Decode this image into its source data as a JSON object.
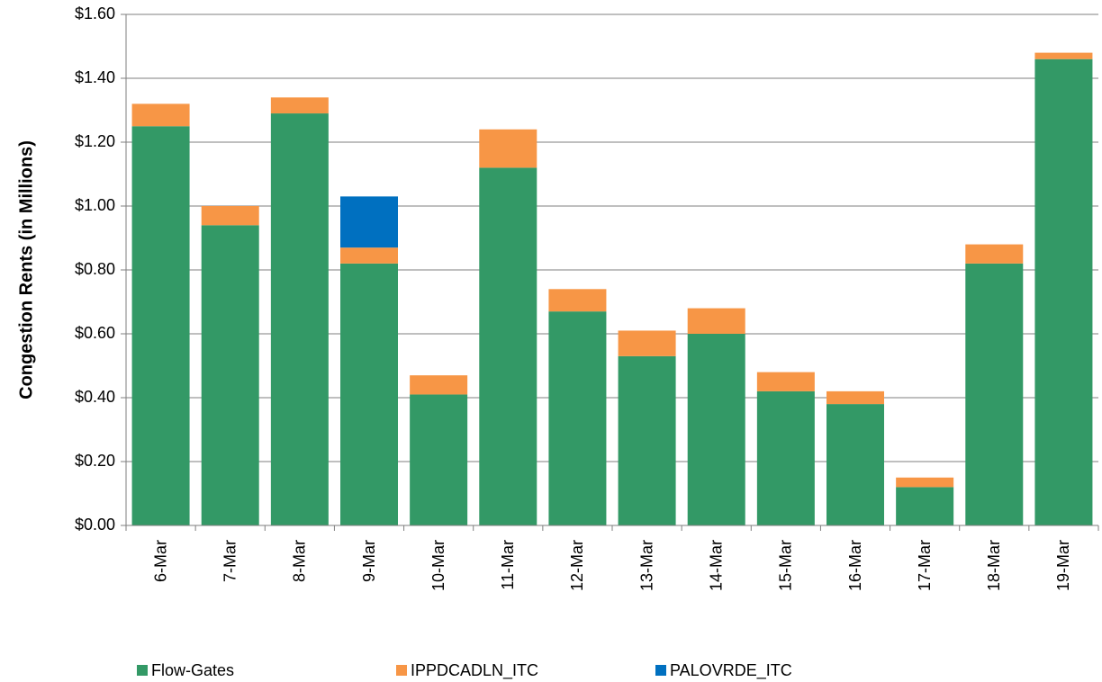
{
  "chart_data": {
    "type": "stacked_bar",
    "y_label": "Congestion Rents (in Millions)",
    "categories": [
      "6-Mar",
      "7-Mar",
      "8-Mar",
      "9-Mar",
      "10-Mar",
      "11-Mar",
      "12-Mar",
      "13-Mar",
      "14-Mar",
      "15-Mar",
      "16-Mar",
      "17-Mar",
      "18-Mar",
      "19-Mar"
    ],
    "series": [
      {
        "name": "Flow-Gates",
        "color": "#339966",
        "values": [
          1.25,
          0.94,
          1.29,
          0.82,
          0.41,
          1.12,
          0.67,
          0.53,
          0.6,
          0.42,
          0.38,
          0.12,
          0.82,
          1.46
        ]
      },
      {
        "name": "IPPDCADLN_ITC",
        "color": "#f79646",
        "values": [
          0.07,
          0.06,
          0.05,
          0.05,
          0.06,
          0.12,
          0.07,
          0.08,
          0.08,
          0.06,
          0.04,
          0.03,
          0.06,
          0.02
        ]
      },
      {
        "name": "PALOVRDE_ITC",
        "color": "#0070c0",
        "values": [
          null,
          null,
          null,
          0.16,
          null,
          null,
          null,
          null,
          null,
          null,
          null,
          null,
          null,
          null
        ]
      }
    ],
    "ylim": [
      0,
      1.6
    ],
    "yticks": [
      {
        "value": 0,
        "label": "$0.00"
      },
      {
        "value": 0.2,
        "label": "$0.20"
      },
      {
        "value": 0.4,
        "label": "$0.40"
      },
      {
        "value": 0.6,
        "label": "$0.60"
      },
      {
        "value": 0.8,
        "label": "$0.80"
      },
      {
        "value": 1.0,
        "label": "$1.00"
      },
      {
        "value": 1.2,
        "label": "$1.20"
      },
      {
        "value": 1.4,
        "label": "$1.40"
      },
      {
        "value": 1.6,
        "label": "$1.60"
      }
    ],
    "grid": true
  }
}
